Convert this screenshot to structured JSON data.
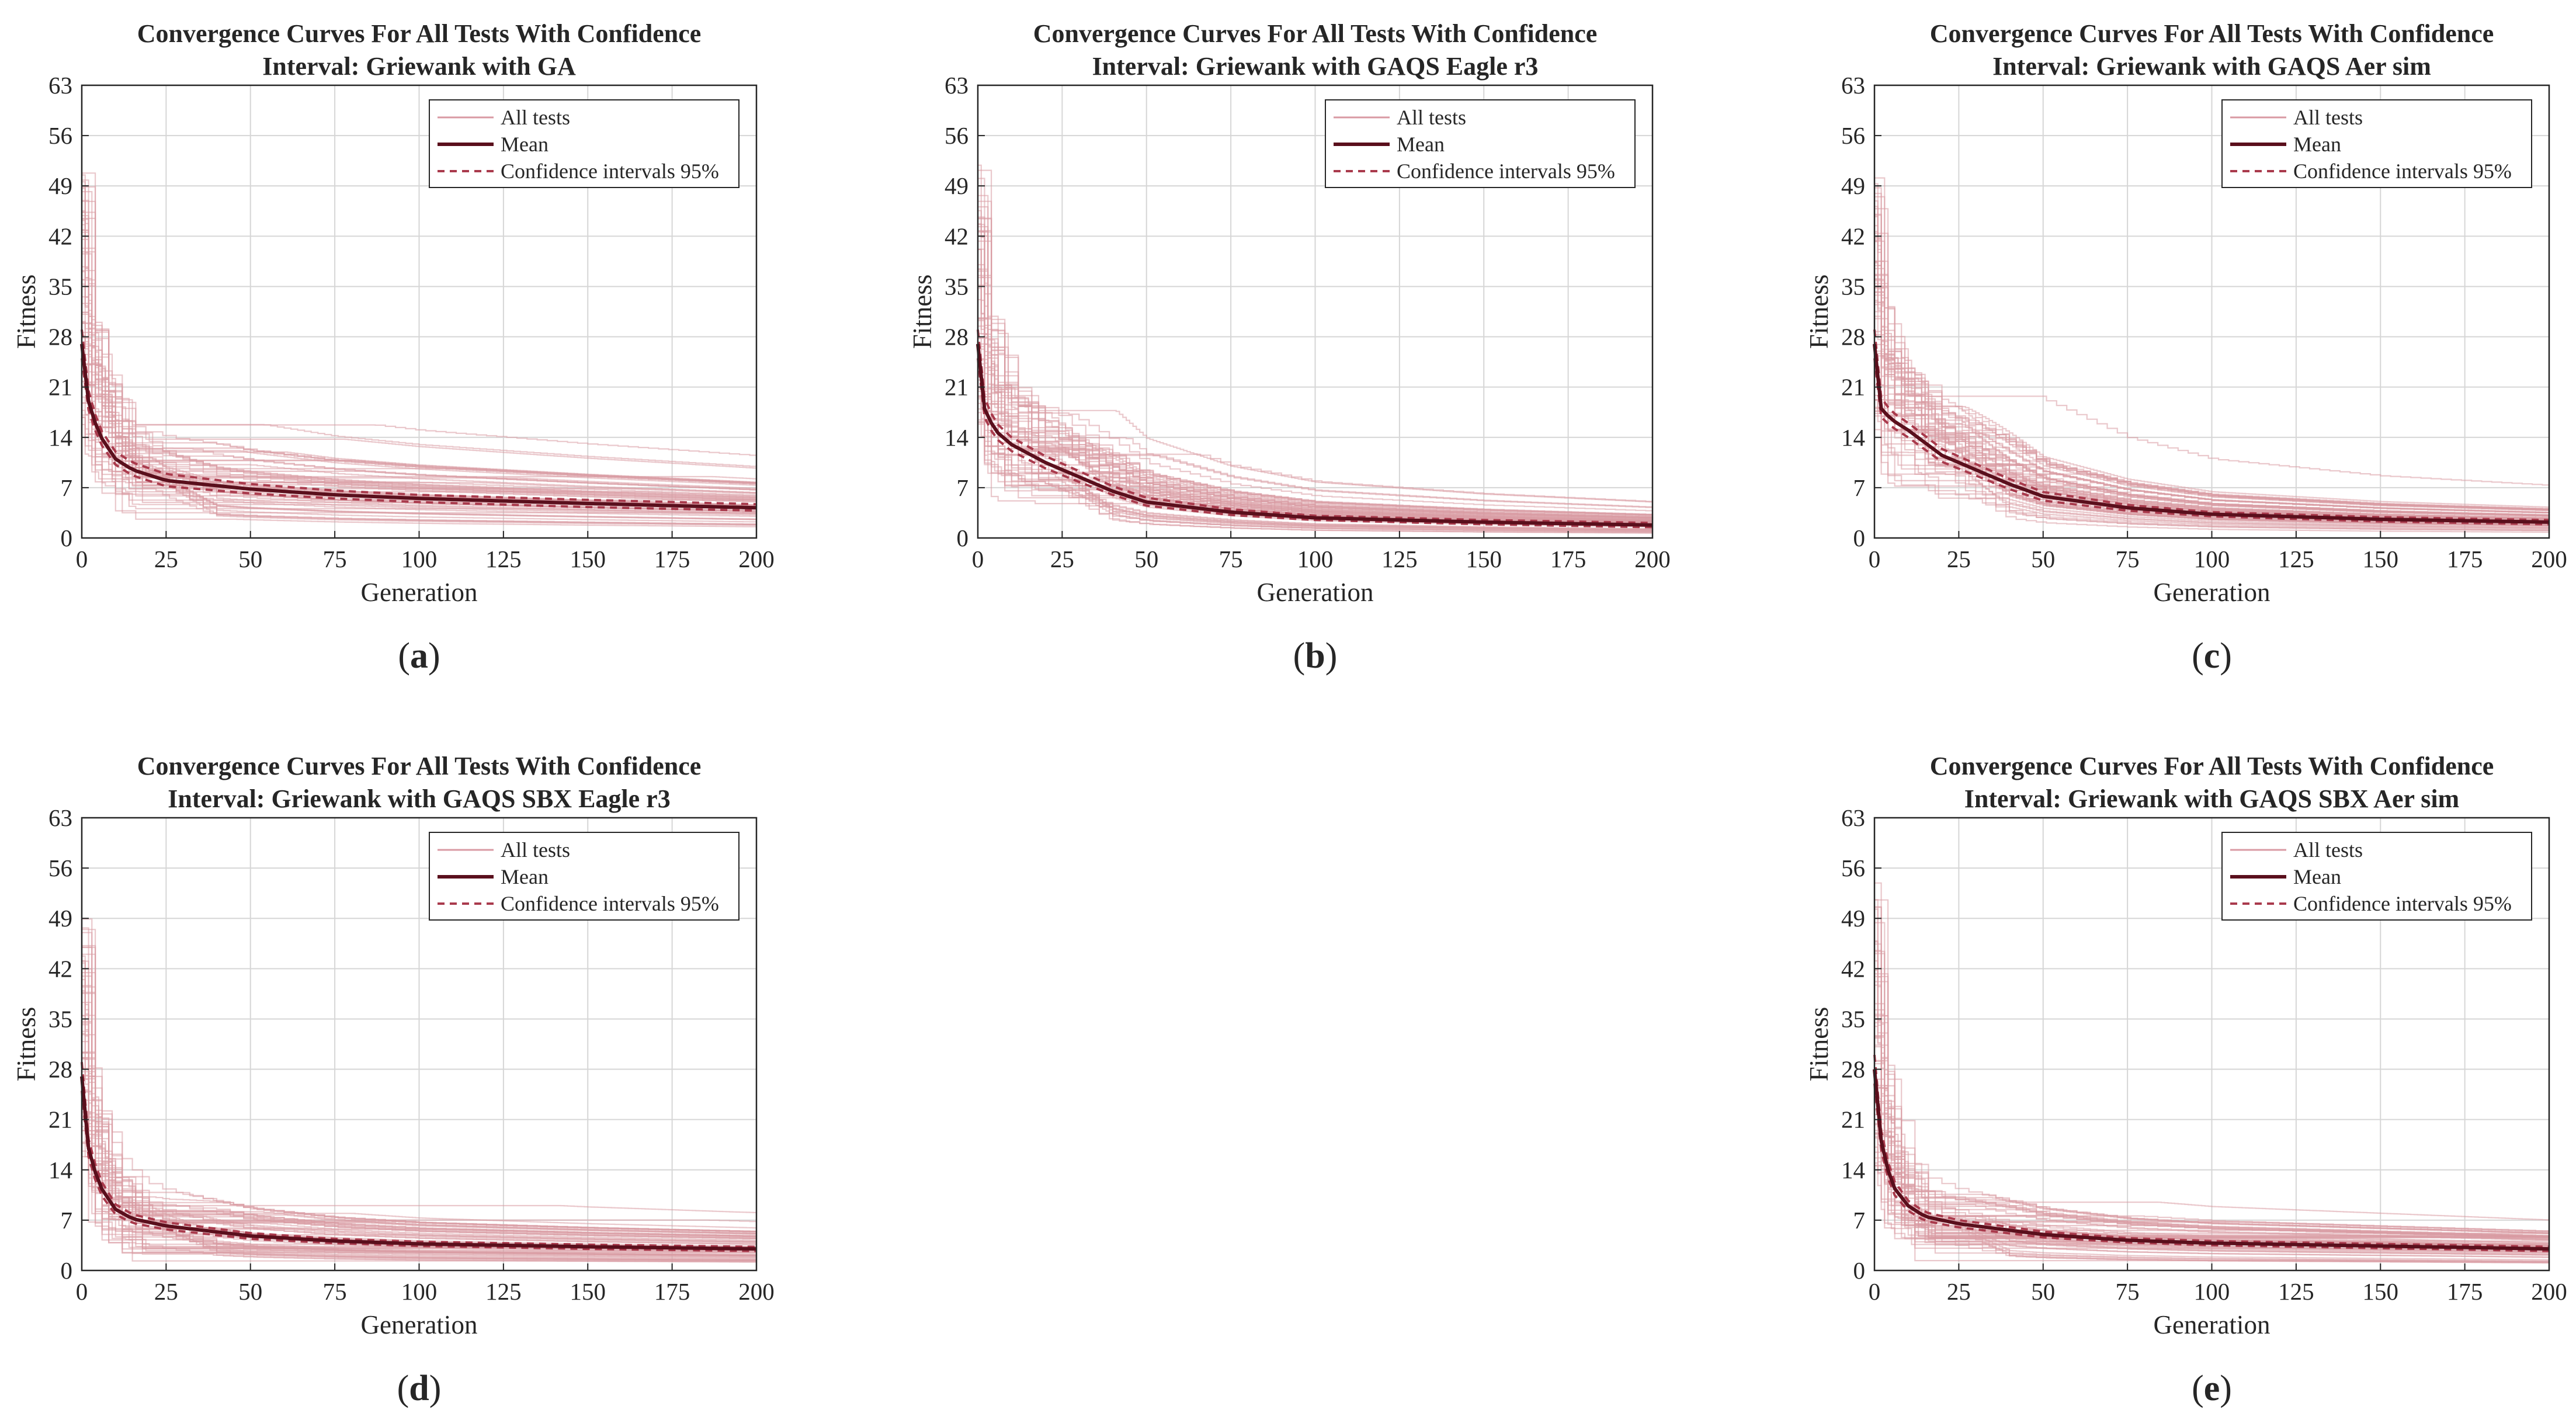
{
  "colors": {
    "all_tests": "#d99aa3",
    "mean": "#5a0f1c",
    "ci": "#a93a4c",
    "grid": "#d6d6d6",
    "axis": "#262626"
  },
  "chart_data": [
    {
      "id": "a",
      "type": "line",
      "title_line1": "Convergence Curves For All Tests With Confidence",
      "title_line2": "Interval: Griewank with GA",
      "xlabel": "Generation",
      "ylabel": "Fitness",
      "xlim": [
        0,
        200
      ],
      "ylim": [
        0,
        63
      ],
      "xticks": [
        0,
        25,
        50,
        75,
        100,
        125,
        150,
        175,
        200
      ],
      "yticks": [
        0,
        7,
        14,
        21,
        28,
        35,
        42,
        49,
        56,
        63
      ],
      "grid": true,
      "legend": {
        "position": "top-right",
        "entries": [
          "All tests",
          "Mean",
          "Confidence intervals 95%"
        ]
      },
      "caption_letter": "a",
      "n_tests": 60,
      "mean": {
        "x": [
          0,
          2,
          5,
          10,
          15,
          25,
          50,
          75,
          100,
          150,
          200
        ],
        "y": [
          27,
          19,
          14.5,
          11,
          9.5,
          8,
          6.8,
          6,
          5.5,
          4.8,
          4.2
        ]
      },
      "ci_upper": {
        "x": [
          0,
          2,
          5,
          10,
          15,
          25,
          50,
          75,
          100,
          150,
          200
        ],
        "y": [
          29,
          20.5,
          15.5,
          12,
          10.5,
          8.9,
          7.5,
          6.6,
          6,
          5.3,
          4.7
        ]
      },
      "ci_lower": {
        "x": [
          0,
          2,
          5,
          10,
          15,
          25,
          50,
          75,
          100,
          150,
          200
        ],
        "y": [
          25,
          17.8,
          13.5,
          10.2,
          8.7,
          7.2,
          6.2,
          5.5,
          5,
          4.3,
          3.8
        ]
      }
    },
    {
      "id": "b",
      "type": "line",
      "title_line1": "Convergence Curves For All Tests With Confidence",
      "title_line2": "Interval: Griewank with GAQS Eagle r3",
      "xlabel": "Generation",
      "ylabel": "Fitness",
      "xlim": [
        0,
        200
      ],
      "ylim": [
        0,
        63
      ],
      "xticks": [
        0,
        25,
        50,
        75,
        100,
        125,
        150,
        175,
        200
      ],
      "yticks": [
        0,
        7,
        14,
        21,
        28,
        35,
        42,
        49,
        56,
        63
      ],
      "grid": true,
      "legend": {
        "position": "top-right",
        "entries": [
          "All tests",
          "Mean",
          "Confidence intervals 95%"
        ]
      },
      "caption_letter": "b",
      "n_tests": 60,
      "mean": {
        "x": [
          0,
          2,
          5,
          10,
          20,
          30,
          40,
          50,
          75,
          100,
          150,
          200
        ],
        "y": [
          27,
          18,
          15,
          13,
          10.5,
          8.5,
          6.5,
          5,
          3.6,
          2.8,
          2.2,
          1.8
        ]
      },
      "ci_upper": {
        "x": [
          0,
          2,
          5,
          10,
          20,
          30,
          40,
          50,
          75,
          100,
          150,
          200
        ],
        "y": [
          29,
          19.5,
          16.2,
          14,
          11.4,
          9.3,
          7.2,
          5.6,
          4,
          3.1,
          2.5,
          2.1
        ]
      },
      "ci_lower": {
        "x": [
          0,
          2,
          5,
          10,
          20,
          30,
          40,
          50,
          75,
          100,
          150,
          200
        ],
        "y": [
          25,
          16.8,
          14,
          12.1,
          9.7,
          7.8,
          6,
          4.5,
          3.2,
          2.5,
          1.9,
          1.5
        ]
      }
    },
    {
      "id": "c",
      "type": "line",
      "title_line1": "Convergence Curves For All Tests With Confidence",
      "title_line2": "Interval: Griewank with GAQS Aer sim",
      "xlabel": "Generation",
      "ylabel": "Fitness",
      "xlim": [
        0,
        200
      ],
      "ylim": [
        0,
        63
      ],
      "xticks": [
        0,
        25,
        50,
        75,
        100,
        125,
        150,
        175,
        200
      ],
      "yticks": [
        0,
        7,
        14,
        21,
        28,
        35,
        42,
        49,
        56,
        63
      ],
      "grid": true,
      "legend": {
        "position": "top-right",
        "entries": [
          "All tests",
          "Mean",
          "Confidence intervals 95%"
        ]
      },
      "caption_letter": "c",
      "n_tests": 60,
      "mean": {
        "x": [
          0,
          2,
          5,
          10,
          20,
          30,
          40,
          50,
          75,
          100,
          150,
          200
        ],
        "y": [
          27,
          18,
          16.5,
          15,
          11.5,
          9.5,
          7.5,
          5.8,
          4.2,
          3.3,
          2.6,
          2.2
        ]
      },
      "ci_upper": {
        "x": [
          0,
          2,
          5,
          10,
          20,
          30,
          40,
          50,
          75,
          100,
          150,
          200
        ],
        "y": [
          29,
          19.5,
          17.6,
          16,
          12.4,
          10.3,
          8.2,
          6.4,
          4.6,
          3.6,
          2.9,
          2.5
        ]
      },
      "ci_lower": {
        "x": [
          0,
          2,
          5,
          10,
          20,
          30,
          40,
          50,
          75,
          100,
          150,
          200
        ],
        "y": [
          25,
          16.8,
          15.5,
          14,
          10.6,
          8.7,
          6.8,
          5.2,
          3.8,
          3,
          2.3,
          1.9
        ]
      }
    },
    {
      "id": "d",
      "type": "line",
      "title_line1": "Convergence Curves For All Tests With Confidence",
      "title_line2": "Interval: Griewank with GAQS SBX Eagle r3",
      "xlabel": "Generation",
      "ylabel": "Fitness",
      "xlim": [
        0,
        200
      ],
      "ylim": [
        0,
        63
      ],
      "xticks": [
        0,
        25,
        50,
        75,
        100,
        125,
        150,
        175,
        200
      ],
      "yticks": [
        0,
        7,
        14,
        21,
        28,
        35,
        42,
        49,
        56,
        63
      ],
      "grid": true,
      "legend": {
        "position": "top-right",
        "entries": [
          "All tests",
          "Mean",
          "Confidence intervals 95%"
        ]
      },
      "caption_letter": "d",
      "n_tests": 60,
      "mean": {
        "x": [
          0,
          2,
          5,
          10,
          15,
          25,
          50,
          75,
          100,
          150,
          200
        ],
        "y": [
          27,
          17,
          12,
          8.5,
          7.2,
          6.2,
          4.8,
          4.1,
          3.7,
          3.3,
          3
        ]
      },
      "ci_upper": {
        "x": [
          0,
          2,
          5,
          10,
          15,
          25,
          50,
          75,
          100,
          150,
          200
        ],
        "y": [
          29,
          18.3,
          13,
          9.2,
          7.8,
          6.7,
          5.2,
          4.4,
          4,
          3.6,
          3.3
        ]
      },
      "ci_lower": {
        "x": [
          0,
          2,
          5,
          10,
          15,
          25,
          50,
          75,
          100,
          150,
          200
        ],
        "y": [
          25,
          15.8,
          11,
          7.8,
          6.6,
          5.7,
          4.4,
          3.8,
          3.4,
          3,
          2.7
        ]
      }
    },
    {
      "id": "e",
      "type": "line",
      "title_line1": "Convergence Curves For All Tests With Confidence",
      "title_line2": "Interval: Griewank with GAQS SBX Aer sim",
      "xlabel": "Generation",
      "ylabel": "Fitness",
      "xlim": [
        0,
        200
      ],
      "ylim": [
        0,
        63
      ],
      "xticks": [
        0,
        25,
        50,
        75,
        100,
        125,
        150,
        175,
        200
      ],
      "yticks": [
        0,
        7,
        14,
        21,
        28,
        35,
        42,
        49,
        56,
        63
      ],
      "grid": true,
      "legend": {
        "position": "top-right",
        "entries": [
          "All tests",
          "Mean",
          "Confidence intervals 95%"
        ]
      },
      "caption_letter": "e",
      "n_tests": 60,
      "mean": {
        "x": [
          0,
          2,
          5,
          10,
          15,
          25,
          50,
          75,
          100,
          150,
          200
        ],
        "y": [
          28,
          18,
          12,
          9,
          7.5,
          6.5,
          5,
          4.2,
          3.8,
          3.4,
          3
        ]
      },
      "ci_upper": {
        "x": [
          0,
          2,
          5,
          10,
          15,
          25,
          50,
          75,
          100,
          150,
          200
        ],
        "y": [
          30,
          19.4,
          13,
          9.7,
          8.1,
          7,
          5.4,
          4.5,
          4.1,
          3.7,
          3.3
        ]
      },
      "ci_lower": {
        "x": [
          0,
          2,
          5,
          10,
          15,
          25,
          50,
          75,
          100,
          150,
          200
        ],
        "y": [
          26,
          16.7,
          11,
          8.3,
          6.9,
          6,
          4.6,
          3.9,
          3.5,
          3.1,
          2.7
        ]
      }
    }
  ]
}
